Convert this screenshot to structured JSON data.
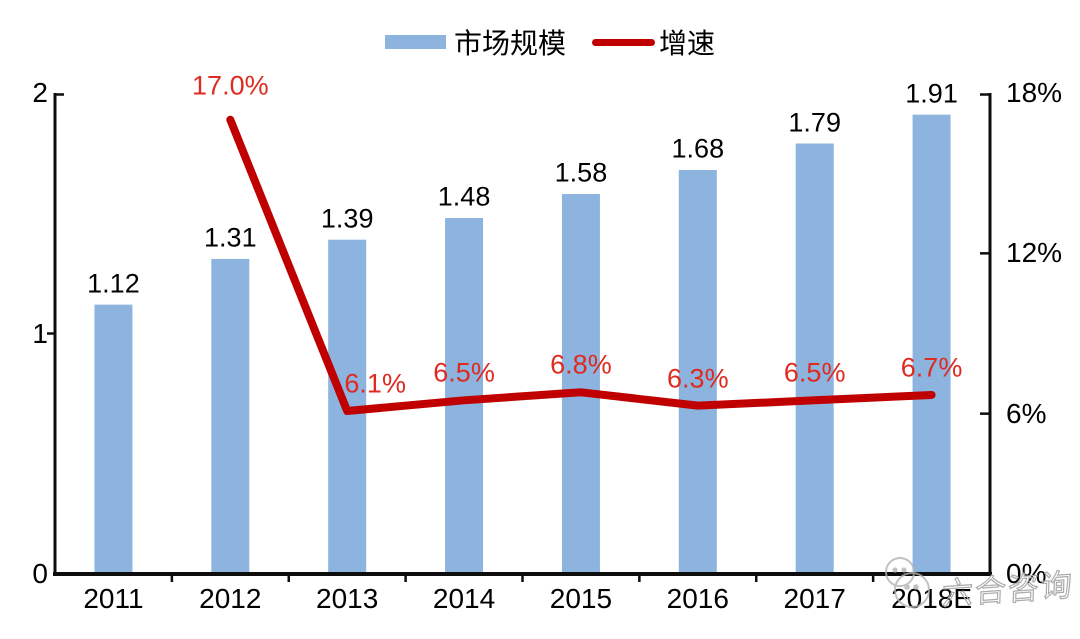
{
  "legend": {
    "bar_label": "市场规模",
    "line_label": "增速"
  },
  "watermark": {
    "text": "六合咨询",
    "icon": "wechat-bubbles-icon"
  },
  "colors": {
    "bar": "#8DB3DF",
    "line": "#C00000",
    "line_label": "#DF2A20",
    "axis": "#0d0d0d",
    "text": "#000000",
    "watermark": "#ABABAB"
  },
  "chart_data": {
    "type": "combo-bar-line",
    "title": "",
    "categories": [
      "2011",
      "2012",
      "2013",
      "2014",
      "2015",
      "2016",
      "2017",
      "2018E"
    ],
    "series": [
      {
        "name": "市场规模",
        "type": "bar",
        "axis": "left",
        "values": [
          1.12,
          1.31,
          1.39,
          1.48,
          1.58,
          1.68,
          1.79,
          1.91
        ],
        "labels": [
          "1.12",
          "1.31",
          "1.39",
          "1.48",
          "1.58",
          "1.68",
          "1.79",
          "1.91"
        ]
      },
      {
        "name": "增速",
        "type": "line",
        "axis": "right",
        "values": [
          null,
          17.0,
          6.1,
          6.5,
          6.8,
          6.3,
          6.5,
          6.7
        ],
        "labels": [
          null,
          "17.0%",
          "6.1%",
          "6.5%",
          "6.8%",
          "6.3%",
          "6.5%",
          "6.7%"
        ]
      }
    ],
    "left_axis": {
      "min": 0,
      "max": 2,
      "tick_values": [
        0,
        1,
        2
      ],
      "tick_labels": [
        "0",
        "1",
        "2"
      ]
    },
    "right_axis": {
      "min": 0,
      "max": 18,
      "tick_values": [
        0,
        6,
        12,
        18
      ],
      "tick_labels": [
        "0%",
        "6%",
        "12%",
        "18%"
      ]
    },
    "grid": false,
    "legend_position": "top-center"
  }
}
